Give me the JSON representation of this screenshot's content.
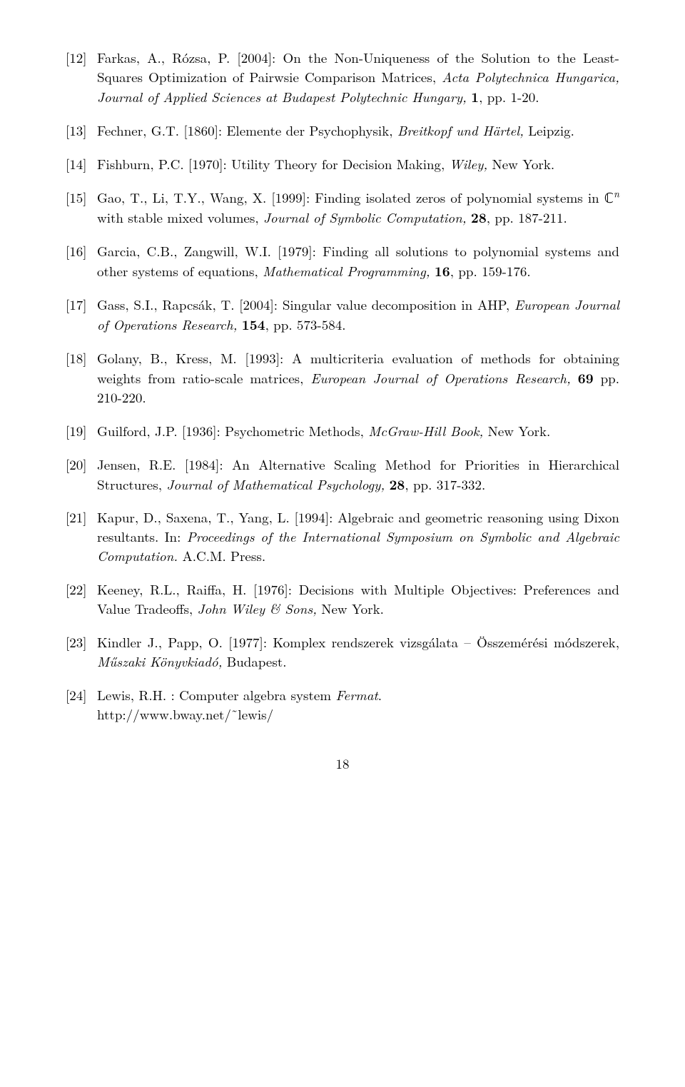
{
  "page_number": "18",
  "refs": [
    {
      "num": "[12]",
      "html": "Farkas, A., Rózsa, P. [2004]: On the Non-Uniqueness of the Solution to the Least-Squares Optimization of Pairwsie Comparison Matrices, <span class=\"ital\">Acta Polytechnica Hungarica, Journal of Applied Sciences at Budapest Polytechnic Hungary,</span> <span class=\"bold\">1</span>, pp. 1-20."
    },
    {
      "num": "[13]",
      "html": "Fechner, G.T. [1860]: Elemente der Psychophysik, <span class=\"ital\">Breitkopf und Härtel,</span> Leipzig."
    },
    {
      "num": "[14]",
      "html": "Fishburn, P.C. [1970]: Utility Theory for Decision Making, <span class=\"ital\">Wiley,</span> New York."
    },
    {
      "num": "[15]",
      "html": "Gao, T., Li, T.Y., Wang, X. [1999]: Finding isolated zeros of polynomial systems in ℂ<sup><span class=\"ital\">n</span></sup> with stable mixed volumes, <span class=\"ital\">Journal of Symbolic Computation,</span> <span class=\"bold\">28</span>, pp. 187-211."
    },
    {
      "num": "[16]",
      "html": "Garcia, C.B., Zangwill, W.I. [1979]: Finding all solutions to polynomial systems and other systems of equations, <span class=\"ital\">Mathematical Programming,</span> <span class=\"bold\">16</span>, pp. 159-176."
    },
    {
      "num": "[17]",
      "html": "Gass, S.I., Rapcsák, T. [2004]: Singular value decomposition in AHP, <span class=\"ital\">European Journal of Operations Research,</span> <span class=\"bold\">154</span>, pp. 573-584."
    },
    {
      "num": "[18]",
      "html": "Golany, B., Kress, M. [1993]: A multicriteria evaluation of methods for obtaining weights from ratio-scale matrices, <span class=\"ital\">European Journal of Operations Research,</span> <span class=\"bold\">69</span> pp. 210-220."
    },
    {
      "num": "[19]",
      "html": "Guilford, J.P. [1936]: Psychometric Methods, <span class=\"ital\">McGraw-Hill Book,</span> New York."
    },
    {
      "num": "[20]",
      "html": "Jensen, R.E. [1984]: An Alternative Scaling Method for Priorities in Hierarchical Structures, <span class=\"ital\">Journal of Mathematical Psychology,</span> <span class=\"bold\">28</span>, pp. 317-332."
    },
    {
      "num": "[21]",
      "html": "Kapur, D., Saxena, T., Yang, L. [1994]: Algebraic and geometric reasoning using Dixon resultants. In: <span class=\"ital\">Proceedings of the International Symposium on Symbolic and Algebraic Computation.</span> A.C.M. Press."
    },
    {
      "num": "[22]",
      "html": "Keeney, R.L., Raiffa, H. [1976]: Decisions with Multiple Objectives: Preferences and Value Tradeoffs, <span class=\"ital\">John Wiley &amp; Sons,</span> New York."
    },
    {
      "num": "[23]",
      "html": "Kindler J., Papp, O. [1977]: Komplex rendszerek vizsgálata – Összemérési módszerek, <span class=\"ital\">Műszaki Könyvkiadó,</span> Budapest."
    },
    {
      "num": "[24]",
      "html": "Lewis, R.H. : Computer algebra system <span class=\"ital\">Fermat</span>.<br>http://www.bway.net/˜lewis/"
    }
  ]
}
